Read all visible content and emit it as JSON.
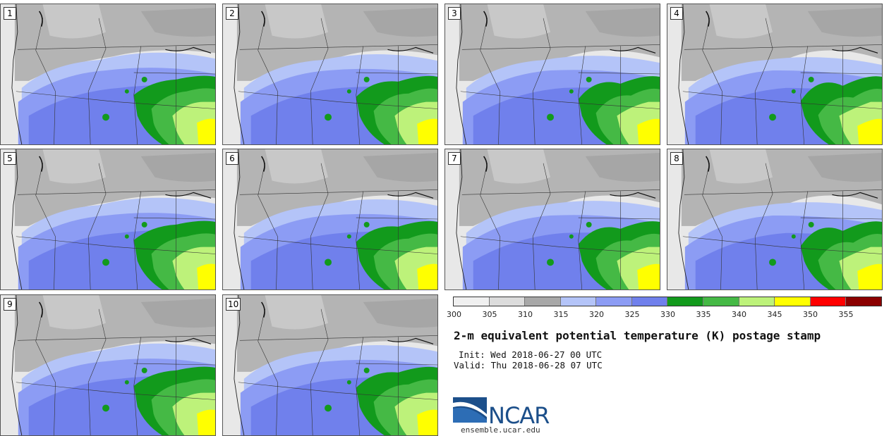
{
  "panels": [
    {
      "label": "1"
    },
    {
      "label": "2"
    },
    {
      "label": "3"
    },
    {
      "label": "4"
    },
    {
      "label": "5"
    },
    {
      "label": "6"
    },
    {
      "label": "7"
    },
    {
      "label": "8"
    },
    {
      "label": "9"
    },
    {
      "label": "10"
    }
  ],
  "legend": {
    "unit": "K",
    "ticks": [
      "300",
      "305",
      "310",
      "315",
      "320",
      "325",
      "330",
      "335",
      "340",
      "345",
      "350",
      "355"
    ],
    "colors": [
      "#f0f0f0",
      "#dcdcdc",
      "#a8a8a8",
      "#b4c4f8",
      "#8c9cf4",
      "#7080ec",
      "#129a1c",
      "#45b945",
      "#bdf27a",
      "#ffff00",
      "#ff0000",
      "#8b0000"
    ]
  },
  "title": "2-m equivalent potential temperature (K) postage stamp",
  "init": "Init: Wed 2018-06-27 00 UTC",
  "valid": "Valid: Thu 2018-06-28 07 UTC",
  "logo_text": "NCAR",
  "url": "ensemble.ucar.edu"
}
